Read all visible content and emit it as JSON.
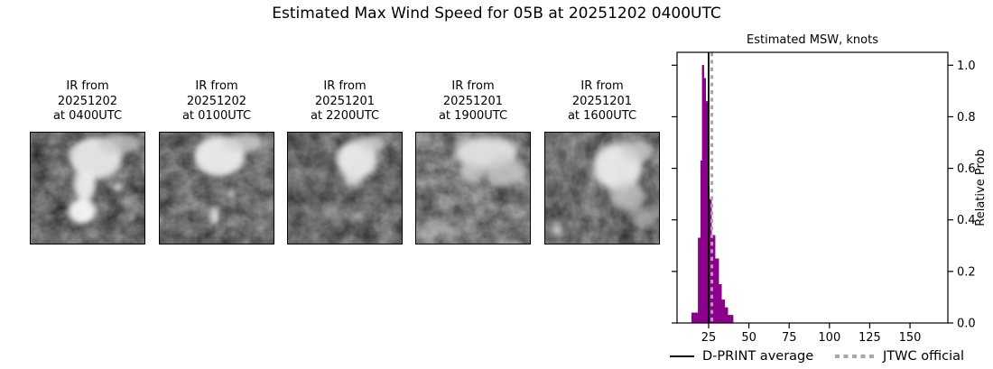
{
  "title": "Estimated Max Wind Speed for 05B at 20251202 0400UTC",
  "ir_panels": [
    {
      "label": "IR from\n20251202\nat 0400UTC"
    },
    {
      "label": "IR from\n20251202\nat 0100UTC"
    },
    {
      "label": "IR from\n20251201\nat 2200UTC"
    },
    {
      "label": "IR from\n20251201\nat 1900UTC"
    },
    {
      "label": "IR from\n20251201\nat 1600UTC"
    }
  ],
  "chart_data": {
    "type": "bar",
    "title": "Estimated MSW, knots",
    "ylabel": "Relative Prob",
    "xlim": [
      5.4,
      173.5
    ],
    "ylim": [
      0,
      1.05
    ],
    "x_ticks": [
      25,
      50,
      75,
      100,
      125,
      150
    ],
    "y_ticks": [
      0.0,
      0.2,
      0.4,
      0.6,
      0.8,
      1.0
    ],
    "grid": false,
    "bar_color": "#8b008b",
    "bins": [
      {
        "from": 14.5,
        "to": 18.5,
        "p": 0.04
      },
      {
        "from": 18.5,
        "to": 20.0,
        "p": 0.33
      },
      {
        "from": 20.0,
        "to": 21.0,
        "p": 0.63
      },
      {
        "from": 21.0,
        "to": 22.2,
        "p": 1.0
      },
      {
        "from": 22.2,
        "to": 23.3,
        "p": 0.95
      },
      {
        "from": 23.3,
        "to": 24.4,
        "p": 0.86
      },
      {
        "from": 24.4,
        "to": 25.5,
        "p": 0.53
      },
      {
        "from": 25.5,
        "to": 26.7,
        "p": 0.48
      },
      {
        "from": 26.7,
        "to": 29.0,
        "p": 0.34
      },
      {
        "from": 29.0,
        "to": 31.2,
        "p": 0.25
      },
      {
        "from": 31.2,
        "to": 33.0,
        "p": 0.15
      },
      {
        "from": 33.0,
        "to": 35.0,
        "p": 0.09
      },
      {
        "from": 35.0,
        "to": 37.0,
        "p": 0.06
      },
      {
        "from": 37.0,
        "to": 40.2,
        "p": 0.03
      }
    ],
    "vlines": [
      {
        "label": "D-PRINT average",
        "x": 25,
        "style": "solid",
        "color": "#000000",
        "width": 1.8
      },
      {
        "label": "JTWC official",
        "x": 27,
        "style": "dashed",
        "color": "#a6a6a6",
        "width": 3
      }
    ],
    "legend": [
      {
        "label": "D-PRINT average",
        "style": "solid",
        "color": "#000000"
      },
      {
        "label": "JTWC official",
        "style": "dashed",
        "color": "#a6a6a6"
      }
    ],
    "legend_position": "bottom"
  }
}
